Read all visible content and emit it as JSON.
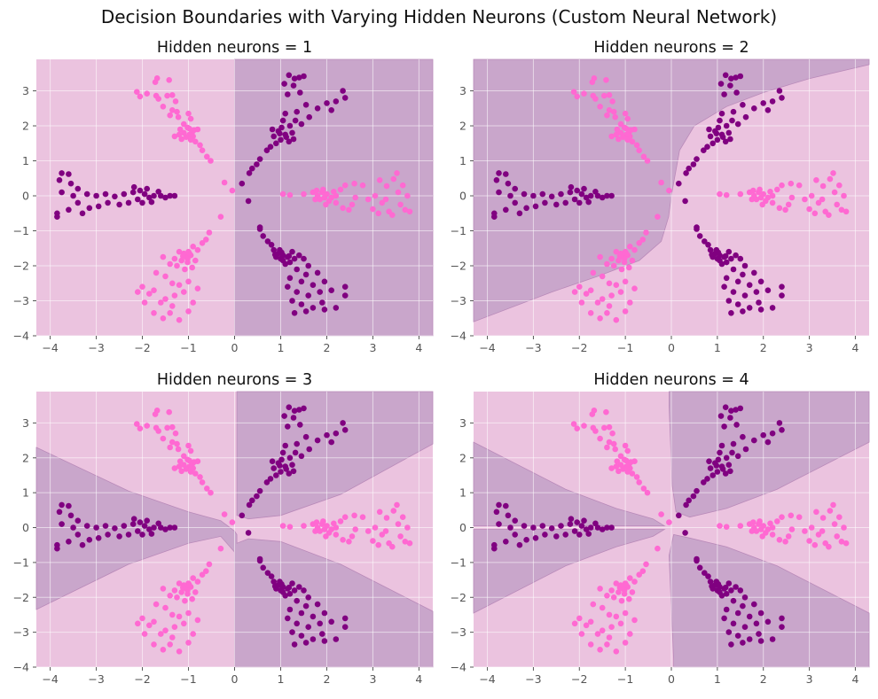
{
  "figure": {
    "suptitle": "Decision Boundaries with Varying Hidden Neurons (Custom Neural Network)"
  },
  "colors": {
    "background": "#ebc3df",
    "region_dark": "#c9a6cb",
    "class_0": "#800080",
    "class_1": "#ff69d2",
    "boundary": "#b98ab9"
  },
  "chart_data": [
    {
      "type": "scatter",
      "title": "Hidden neurons = 1",
      "xlim": [
        -4.3,
        4.3
      ],
      "ylim": [
        -4,
        3.9
      ],
      "xticks": [
        -4,
        -3,
        -2,
        -1,
        0,
        1,
        2,
        3,
        4
      ],
      "yticks": [
        -4,
        -3,
        -2,
        -1,
        0,
        1,
        2,
        3
      ],
      "dark_regions": [
        [
          [
            0,
            -3.6
          ],
          [
            0,
            3.9
          ],
          [
            4.3,
            3.9
          ],
          [
            4.3,
            -4
          ],
          [
            0,
            -4
          ]
        ]
      ]
    },
    {
      "type": "scatter",
      "title": "Hidden neurons = 2",
      "xlim": [
        -4.3,
        4.3
      ],
      "ylim": [
        -4,
        3.9
      ],
      "xticks": [
        -4,
        -3,
        -2,
        -1,
        0,
        1,
        2,
        3,
        4
      ],
      "yticks": [
        -4,
        -3,
        -2,
        -1,
        0,
        1,
        2,
        3
      ],
      "dark_regions": [
        [
          [
            -4.3,
            3.9
          ],
          [
            4.3,
            3.9
          ],
          [
            4.3,
            3.75
          ],
          [
            3.0,
            3.35
          ],
          [
            2.0,
            2.95
          ],
          [
            1.2,
            2.55
          ],
          [
            0.5,
            2.0
          ],
          [
            0.18,
            1.3
          ],
          [
            0.04,
            0.3
          ],
          [
            0.0,
            0.0
          ],
          [
            -0.06,
            -0.6
          ],
          [
            -0.22,
            -1.3
          ],
          [
            -0.7,
            -1.85
          ],
          [
            -1.6,
            -2.3
          ],
          [
            -2.6,
            -2.75
          ],
          [
            -4.3,
            -3.6
          ]
        ]
      ]
    },
    {
      "type": "scatter",
      "title": "Hidden neurons = 3",
      "xlim": [
        -4.3,
        4.3
      ],
      "ylim": [
        -4,
        3.9
      ],
      "xticks": [
        -4,
        -3,
        -2,
        -1,
        0,
        1,
        2,
        3,
        4
      ],
      "yticks": [
        -4,
        -3,
        -2,
        -1,
        0,
        1,
        2,
        3
      ],
      "dark_regions": [
        [
          [
            0.05,
            0.35
          ],
          [
            0.3,
            0.25
          ],
          [
            1.0,
            0.35
          ],
          [
            2.3,
            0.95
          ],
          [
            4.3,
            2.4
          ],
          [
            4.3,
            3.9
          ],
          [
            0.05,
            3.9
          ]
        ],
        [
          [
            -4.3,
            2.3
          ],
          [
            -2.3,
            1.05
          ],
          [
            -1.0,
            0.45
          ],
          [
            -0.3,
            0.2
          ],
          [
            0.0,
            -0.1
          ],
          [
            0.05,
            -0.2
          ],
          [
            0.05,
            -0.45
          ],
          [
            0.3,
            -0.32
          ],
          [
            1.0,
            -0.4
          ],
          [
            2.3,
            -1.05
          ],
          [
            4.3,
            -2.4
          ],
          [
            4.3,
            -4
          ],
          [
            -0.0,
            -4
          ],
          [
            -0.0,
            -0.7
          ],
          [
            -0.3,
            -0.25
          ],
          [
            -1.0,
            -0.45
          ],
          [
            -2.3,
            -1.05
          ],
          [
            -4.3,
            -2.35
          ]
        ]
      ]
    },
    {
      "type": "scatter",
      "title": "Hidden neurons = 4",
      "xlim": [
        -4.3,
        4.3
      ],
      "ylim": [
        -4,
        3.9
      ],
      "xticks": [
        -4,
        -3,
        -2,
        -1,
        0,
        1,
        2,
        3,
        4
      ],
      "yticks": [
        -4,
        -3,
        -2,
        -1,
        0,
        1,
        2,
        3
      ],
      "dark_regions": [
        [
          [
            -0.05,
            3.9
          ],
          [
            4.3,
            3.9
          ],
          [
            4.3,
            2.45
          ],
          [
            2.3,
            1.1
          ],
          [
            1.2,
            0.55
          ],
          [
            0.4,
            0.3
          ],
          [
            0.1,
            0.45
          ],
          [
            0.02,
            1.2
          ],
          [
            -0.05,
            3.5
          ]
        ],
        [
          [
            -4.3,
            2.45
          ],
          [
            -2.3,
            1.1
          ],
          [
            -1.2,
            0.55
          ],
          [
            -0.4,
            0.25
          ],
          [
            -0.15,
            0.05
          ],
          [
            -4.3,
            0.05
          ]
        ],
        [
          [
            -4.3,
            -2.45
          ],
          [
            -2.3,
            -1.1
          ],
          [
            -1.2,
            -0.55
          ],
          [
            -0.4,
            -0.25
          ],
          [
            -0.15,
            -0.05
          ],
          [
            -4.3,
            -0.05
          ]
        ],
        [
          [
            0.05,
            -4
          ],
          [
            4.3,
            -4
          ],
          [
            4.3,
            -2.45
          ],
          [
            2.3,
            -1.1
          ],
          [
            1.2,
            -0.55
          ],
          [
            0.4,
            -0.3
          ],
          [
            0.05,
            -0.2
          ],
          [
            -0.05,
            -0.8
          ],
          [
            0.05,
            -3.8
          ]
        ]
      ]
    }
  ],
  "points": {
    "class_1": [
      [
        -1.68,
        3.36
      ],
      [
        -1.72,
        3.25
      ],
      [
        -1.42,
        3.31
      ],
      [
        -2.12,
        2.97
      ],
      [
        -1.9,
        2.92
      ],
      [
        -2.05,
        2.84
      ],
      [
        -1.7,
        2.86
      ],
      [
        -1.46,
        2.86
      ],
      [
        -1.65,
        2.77
      ],
      [
        -1.35,
        2.88
      ],
      [
        -1.28,
        2.7
      ],
      [
        -1.55,
        2.55
      ],
      [
        -1.35,
        2.45
      ],
      [
        -1.25,
        2.4
      ],
      [
        -1.4,
        2.3
      ],
      [
        -1.22,
        2.25
      ],
      [
        -1.0,
        2.35
      ],
      [
        -0.95,
        2.2
      ],
      [
        -1.1,
        2.05
      ],
      [
        -0.98,
        1.92
      ],
      [
        -1.1,
        1.8
      ],
      [
        -0.92,
        1.82
      ],
      [
        -1.2,
        1.75
      ],
      [
        -0.9,
        1.7
      ],
      [
        -1.02,
        1.95
      ],
      [
        -1.15,
        1.62
      ],
      [
        -0.85,
        1.55
      ],
      [
        -0.8,
        1.9
      ],
      [
        -1.3,
        1.7
      ],
      [
        -0.75,
        1.45
      ],
      [
        -0.7,
        1.3
      ],
      [
        -0.6,
        1.12
      ],
      [
        -0.52,
        1.0
      ],
      [
        -0.98,
        1.75
      ],
      [
        -1.05,
        1.68
      ],
      [
        -0.88,
        1.88
      ],
      [
        -1.18,
        1.9
      ],
      [
        -0.95,
        1.6
      ],
      [
        -0.22,
        0.38
      ],
      [
        -0.05,
        0.15
      ],
      [
        1.05,
        0.05
      ],
      [
        1.2,
        0.02
      ],
      [
        1.5,
        0.05
      ],
      [
        1.7,
        0.1
      ],
      [
        1.8,
        0.0
      ],
      [
        1.85,
        -0.1
      ],
      [
        1.9,
        0.1
      ],
      [
        1.95,
        -0.05
      ],
      [
        2.0,
        0.05
      ],
      [
        2.1,
        -0.05
      ],
      [
        2.2,
        0.0
      ],
      [
        2.15,
        0.12
      ],
      [
        1.75,
        -0.1
      ],
      [
        2.05,
        -0.15
      ],
      [
        2.2,
        -0.2
      ],
      [
        1.92,
        0.18
      ],
      [
        1.78,
        0.15
      ],
      [
        1.98,
        -0.25
      ],
      [
        2.3,
        0.18
      ],
      [
        2.4,
        0.3
      ],
      [
        2.35,
        -0.35
      ],
      [
        2.6,
        0.35
      ],
      [
        2.55,
        -0.25
      ],
      [
        2.78,
        0.3
      ],
      [
        2.9,
        -0.1
      ],
      [
        3.05,
        0.0
      ],
      [
        3.15,
        0.45
      ],
      [
        3.2,
        -0.2
      ],
      [
        3.3,
        0.28
      ],
      [
        3.35,
        -0.45
      ],
      [
        3.45,
        0.48
      ],
      [
        3.55,
        0.1
      ],
      [
        3.6,
        -0.25
      ],
      [
        3.65,
        0.3
      ],
      [
        3.7,
        -0.4
      ],
      [
        3.75,
        0.0
      ],
      [
        3.8,
        -0.45
      ],
      [
        3.52,
        0.65
      ],
      [
        3.42,
        -0.55
      ],
      [
        3.28,
        -0.1
      ],
      [
        2.48,
        -0.4
      ],
      [
        2.62,
        -0.05
      ],
      [
        3.0,
        -0.38
      ],
      [
        3.12,
        -0.5
      ],
      [
        -0.3,
        -0.6
      ],
      [
        -0.55,
        -1.05
      ],
      [
        -0.62,
        -1.25
      ],
      [
        -0.7,
        -1.35
      ],
      [
        -0.8,
        -1.55
      ],
      [
        -0.9,
        -1.45
      ],
      [
        -1.0,
        -1.6
      ],
      [
        -1.05,
        -1.75
      ],
      [
        -0.95,
        -1.7
      ],
      [
        -1.1,
        -1.65
      ],
      [
        -1.15,
        -1.85
      ],
      [
        -1.02,
        -1.9
      ],
      [
        -1.2,
        -1.6
      ],
      [
        -1.3,
        -1.8
      ],
      [
        -1.25,
        -2.0
      ],
      [
        -0.85,
        -1.85
      ],
      [
        -0.92,
        -2.05
      ],
      [
        -1.08,
        -2.1
      ],
      [
        -1.4,
        -1.95
      ],
      [
        -1.55,
        -1.75
      ],
      [
        -1.5,
        -2.3
      ],
      [
        -1.7,
        -2.2
      ],
      [
        -1.35,
        -2.5
      ],
      [
        -1.2,
        -2.55
      ],
      [
        -1.0,
        -2.45
      ],
      [
        -0.8,
        -2.65
      ],
      [
        -1.1,
        -2.75
      ],
      [
        -1.3,
        -2.85
      ],
      [
        -1.5,
        -2.95
      ],
      [
        -1.75,
        -2.7
      ],
      [
        -2.0,
        -2.6
      ],
      [
        -1.85,
        -2.8
      ],
      [
        -2.1,
        -2.75
      ],
      [
        -1.95,
        -3.05
      ],
      [
        -1.75,
        -3.35
      ],
      [
        -1.55,
        -3.5
      ],
      [
        -1.4,
        -3.35
      ],
      [
        -1.2,
        -3.55
      ],
      [
        -1.0,
        -3.3
      ],
      [
        -0.9,
        -3.05
      ],
      [
        -1.6,
        -3.05
      ],
      [
        -1.35,
        -3.15
      ],
      [
        -1.02,
        -1.8
      ],
      [
        -0.98,
        -1.65
      ],
      [
        -1.12,
        -1.72
      ]
    ],
    "class_0": [
      [
        1.5,
        3.42
      ],
      [
        1.4,
        3.38
      ],
      [
        1.3,
        3.35
      ],
      [
        1.18,
        3.45
      ],
      [
        1.08,
        3.2
      ],
      [
        1.28,
        3.15
      ],
      [
        1.15,
        2.9
      ],
      [
        1.42,
        2.95
      ],
      [
        2.35,
        3.0
      ],
      [
        2.4,
        2.8
      ],
      [
        2.2,
        2.7
      ],
      [
        2.0,
        2.65
      ],
      [
        1.8,
        2.5
      ],
      [
        2.1,
        2.45
      ],
      [
        1.55,
        2.6
      ],
      [
        1.35,
        2.4
      ],
      [
        1.1,
        2.35
      ],
      [
        1.32,
        2.15
      ],
      [
        1.45,
        2.05
      ],
      [
        1.62,
        2.25
      ],
      [
        1.2,
        2.0
      ],
      [
        1.02,
        1.95
      ],
      [
        1.1,
        1.75
      ],
      [
        1.25,
        1.8
      ],
      [
        1.0,
        1.6
      ],
      [
        0.85,
        1.7
      ],
      [
        0.9,
        1.5
      ],
      [
        0.78,
        1.4
      ],
      [
        0.7,
        1.3
      ],
      [
        0.55,
        1.05
      ],
      [
        0.48,
        0.9
      ],
      [
        0.38,
        0.78
      ],
      [
        0.32,
        0.65
      ],
      [
        0.16,
        0.35
      ],
      [
        1.18,
        1.55
      ],
      [
        0.95,
        1.85
      ],
      [
        1.05,
        2.15
      ],
      [
        0.82,
        1.9
      ],
      [
        1.12,
        1.68
      ],
      [
        1.28,
        1.62
      ],
      [
        0.98,
        1.78
      ],
      [
        0.3,
        -0.15
      ],
      [
        0.55,
        -0.9
      ],
      [
        -3.75,
        0.65
      ],
      [
        -3.6,
        0.62
      ],
      [
        -3.8,
        0.45
      ],
      [
        -3.55,
        0.35
      ],
      [
        -3.4,
        0.2
      ],
      [
        -3.75,
        0.1
      ],
      [
        -3.5,
        0.0
      ],
      [
        -3.2,
        0.05
      ],
      [
        -3.0,
        0.0
      ],
      [
        -2.8,
        0.05
      ],
      [
        -2.6,
        -0.02
      ],
      [
        -2.4,
        0.05
      ],
      [
        -2.2,
        0.1
      ],
      [
        -2.05,
        0.15
      ],
      [
        -1.95,
        0.05
      ],
      [
        -1.85,
        -0.05
      ],
      [
        -1.9,
        0.2
      ],
      [
        -2.1,
        -0.1
      ],
      [
        -1.75,
        0.0
      ],
      [
        -1.6,
        0.0
      ],
      [
        -1.5,
        -0.05
      ],
      [
        -1.4,
        0.0
      ],
      [
        -1.3,
        0.0
      ],
      [
        -2.3,
        -0.2
      ],
      [
        -2.5,
        -0.25
      ],
      [
        -2.75,
        -0.2
      ],
      [
        -2.95,
        -0.3
      ],
      [
        -3.15,
        -0.35
      ],
      [
        -3.3,
        -0.5
      ],
      [
        -3.6,
        -0.4
      ],
      [
        -3.85,
        -0.5
      ],
      [
        -3.85,
        -0.6
      ],
      [
        -3.4,
        -0.2
      ],
      [
        -2.0,
        -0.2
      ],
      [
        -1.8,
        -0.18
      ],
      [
        -2.18,
        0.25
      ],
      [
        -1.65,
        0.12
      ],
      [
        0.55,
        -0.95
      ],
      [
        0.62,
        -1.15
      ],
      [
        0.72,
        -1.3
      ],
      [
        0.8,
        -1.4
      ],
      [
        0.85,
        -1.55
      ],
      [
        0.95,
        -1.65
      ],
      [
        1.05,
        -1.7
      ],
      [
        0.9,
        -1.75
      ],
      [
        1.0,
        -1.8
      ],
      [
        1.15,
        -1.75
      ],
      [
        1.2,
        -1.9
      ],
      [
        1.3,
        -1.8
      ],
      [
        1.1,
        -1.95
      ],
      [
        0.98,
        -1.55
      ],
      [
        1.25,
        -1.6
      ],
      [
        1.4,
        -1.7
      ],
      [
        1.5,
        -1.8
      ],
      [
        1.6,
        -2.0
      ],
      [
        1.35,
        -2.1
      ],
      [
        1.55,
        -2.25
      ],
      [
        1.8,
        -2.2
      ],
      [
        1.2,
        -2.35
      ],
      [
        1.45,
        -2.45
      ],
      [
        1.7,
        -2.55
      ],
      [
        1.95,
        -2.45
      ],
      [
        1.15,
        -2.6
      ],
      [
        1.35,
        -2.75
      ],
      [
        1.6,
        -2.85
      ],
      [
        1.85,
        -2.75
      ],
      [
        2.1,
        -2.7
      ],
      [
        2.4,
        -2.6
      ],
      [
        2.4,
        -2.85
      ],
      [
        1.25,
        -3.0
      ],
      [
        1.45,
        -3.1
      ],
      [
        1.7,
        -3.2
      ],
      [
        1.95,
        -3.25
      ],
      [
        2.2,
        -3.2
      ],
      [
        1.3,
        -3.35
      ],
      [
        1.55,
        -3.3
      ],
      [
        1.9,
        -3.05
      ],
      [
        1.05,
        -1.85
      ],
      [
        0.88,
        -1.68
      ],
      [
        1.18,
        -1.72
      ],
      [
        1.02,
        -1.62
      ]
    ]
  }
}
